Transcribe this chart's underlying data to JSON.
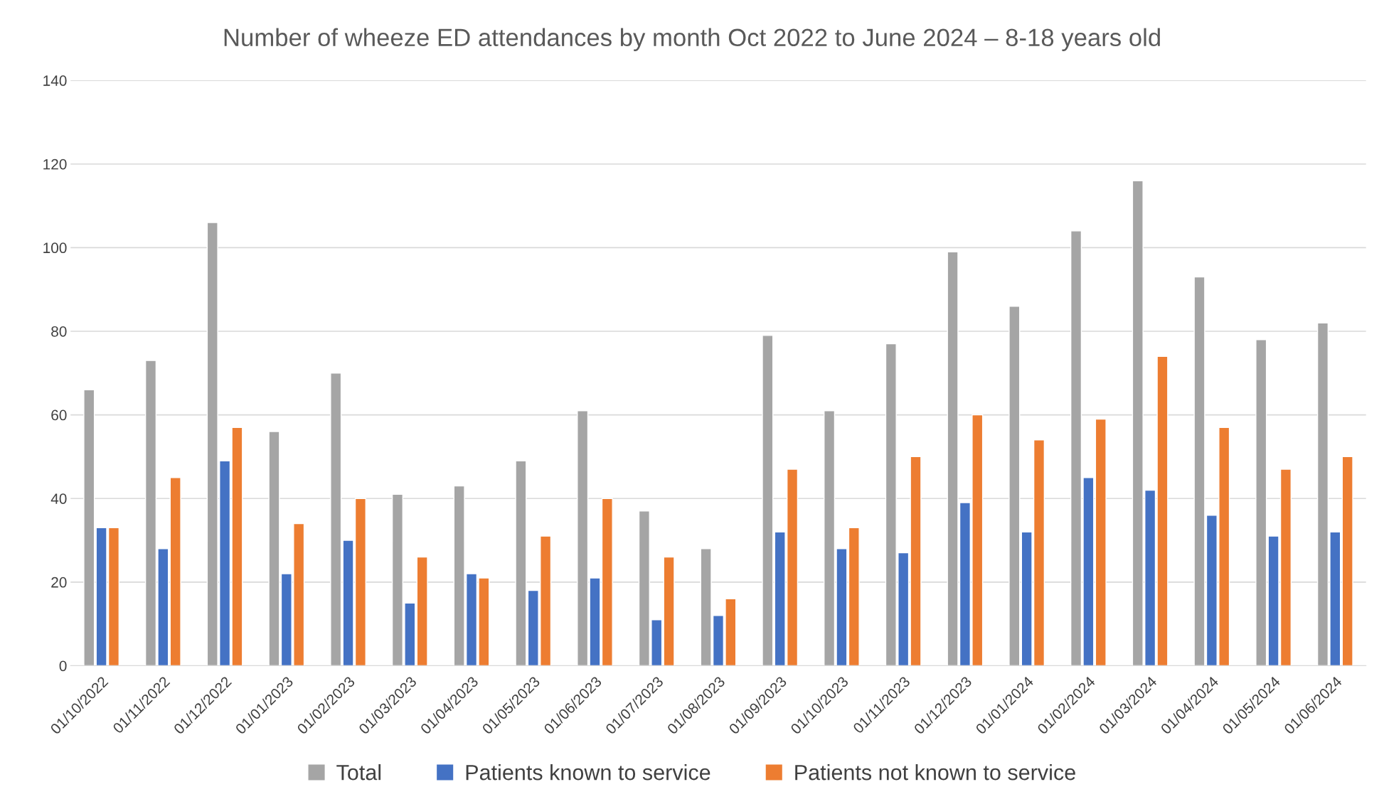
{
  "chart_data": {
    "type": "bar",
    "title": "Number of wheeze ED attendances by month Oct 2022 to June 2024 – 8-18 years old",
    "categories": [
      "01/10/2022",
      "01/11/2022",
      "01/12/2022",
      "01/01/2023",
      "01/02/2023",
      "01/03/2023",
      "01/04/2023",
      "01/05/2023",
      "01/06/2023",
      "01/07/2023",
      "01/08/2023",
      "01/09/2023",
      "01/10/2023",
      "01/11/2023",
      "01/12/2023",
      "01/01/2024",
      "01/02/2024",
      "01/03/2024",
      "01/04/2024",
      "01/05/2024",
      "01/06/2024"
    ],
    "series": [
      {
        "name": "Total",
        "color": "#a5a5a5",
        "values": [
          66,
          73,
          106,
          56,
          70,
          41,
          43,
          49,
          61,
          37,
          28,
          79,
          61,
          77,
          99,
          86,
          104,
          116,
          93,
          78,
          82
        ]
      },
      {
        "name": "Patients known to service",
        "color": "#4472c4",
        "values": [
          33,
          28,
          49,
          22,
          30,
          15,
          22,
          18,
          21,
          11,
          12,
          32,
          28,
          27,
          39,
          32,
          45,
          42,
          36,
          31,
          32
        ]
      },
      {
        "name": "Patients not known to service",
        "color": "#ed7d31",
        "values": [
          33,
          45,
          57,
          34,
          40,
          26,
          21,
          31,
          40,
          26,
          16,
          47,
          33,
          50,
          60,
          54,
          59,
          74,
          57,
          47,
          50
        ]
      }
    ],
    "ylim": [
      0,
      140
    ],
    "yticks": [
      0,
      20,
      40,
      60,
      80,
      100,
      120,
      140
    ],
    "grid": "y",
    "legend": "bottom"
  }
}
